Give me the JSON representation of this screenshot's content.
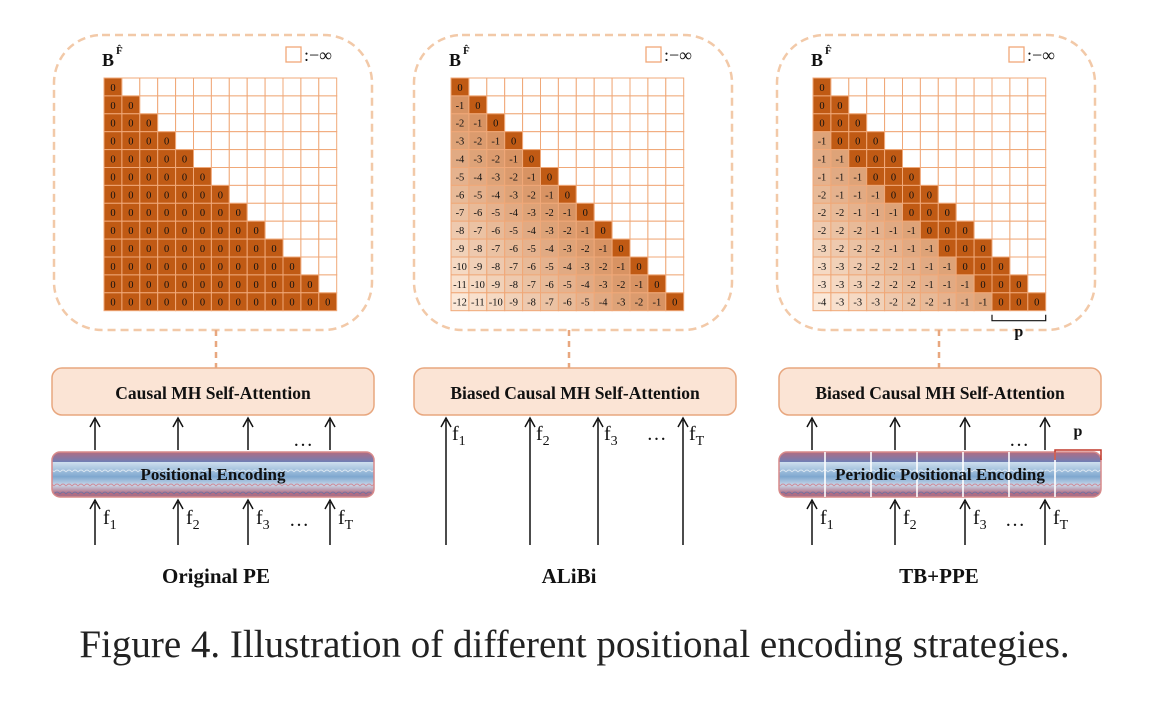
{
  "colors": {
    "dash_border": "#f2c9a8",
    "attn_box_fill": "#fbe4d5",
    "attn_box_stroke": "#e8a77f",
    "dark_cell": "#c05a14",
    "cell_border": "#f0a878",
    "empty_cell": "#ffffff",
    "text": "#111111"
  },
  "matrix_title": "B",
  "matrix_title_sup": "F̂",
  "legend_label": ":−∞",
  "panels": [
    {
      "id": "original",
      "label": "Original PE",
      "attn_label": "Causal MH Self-Attention",
      "encoding_label": "Positional Encoding",
      "period_label": "",
      "type": "zero",
      "inputs": [
        {
          "base": "f",
          "sub": "1"
        },
        {
          "base": "f",
          "sub": "2"
        },
        {
          "base": "f",
          "sub": "3"
        },
        {
          "base": "f",
          "sub": "T"
        }
      ],
      "ellipsis": "…"
    },
    {
      "id": "alibi",
      "label": "ALiBi",
      "attn_label": "Biased Causal MH Self-Attention",
      "encoding_label": "",
      "period_label": "",
      "type": "alibi",
      "inputs": [
        {
          "base": "f",
          "sub": "1"
        },
        {
          "base": "f",
          "sub": "2"
        },
        {
          "base": "f",
          "sub": "3"
        },
        {
          "base": "f",
          "sub": "T"
        }
      ],
      "ellipsis": "…"
    },
    {
      "id": "tbppe",
      "label": "TB+PPE",
      "attn_label": "Biased Causal MH Self-Attention",
      "encoding_label": "Periodic Positional Encoding",
      "period_label": "p",
      "type": "periodic",
      "inputs": [
        {
          "base": "f",
          "sub": "1"
        },
        {
          "base": "f",
          "sub": "2"
        },
        {
          "base": "f",
          "sub": "3"
        },
        {
          "base": "f",
          "sub": "T"
        }
      ],
      "ellipsis": "…"
    }
  ],
  "caption": "Figure 4.  Illustration of different positional encoding strategies."
}
